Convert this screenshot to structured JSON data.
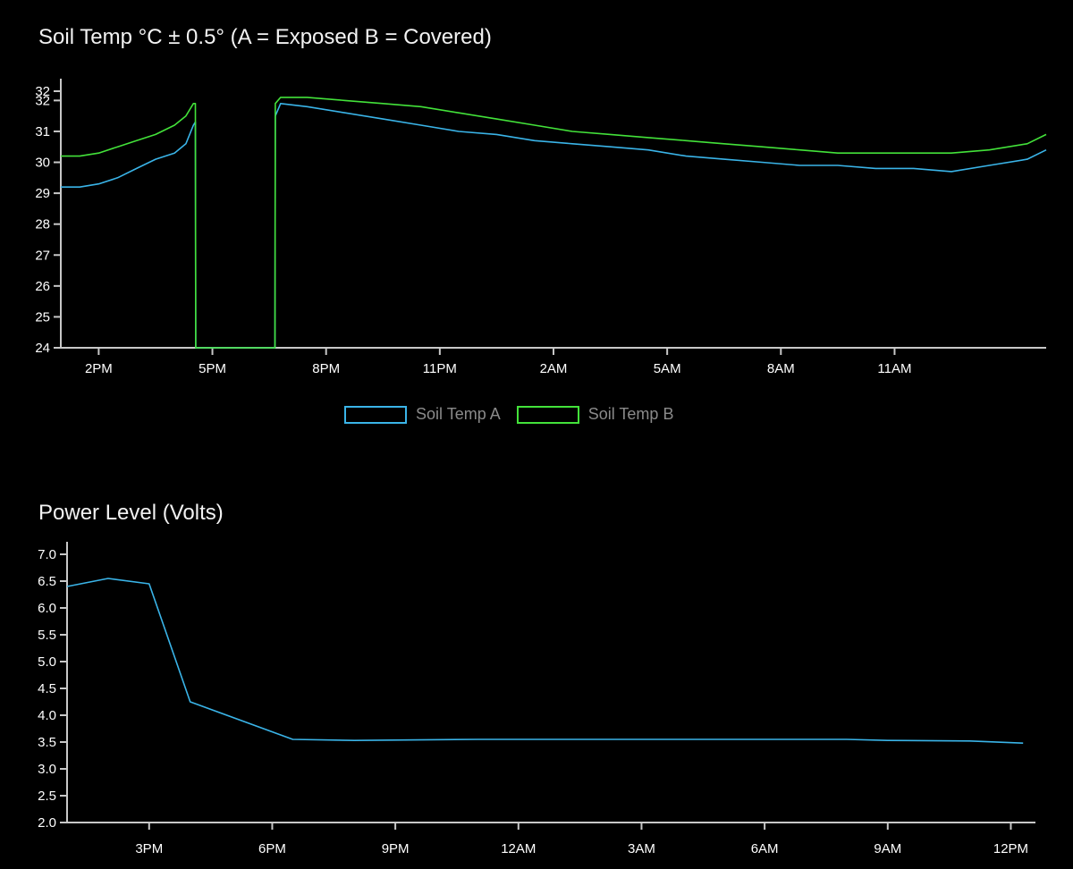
{
  "chart_data": [
    {
      "type": "line",
      "title": "Soil Temp °C ± 0.5° (A = Exposed B = Covered)",
      "xlabel": "",
      "ylabel": "",
      "ylim": [
        24,
        32.3
      ],
      "y_ticks": [
        "32",
        "32",
        "31",
        "30",
        "29",
        "28",
        "27",
        "26",
        "25",
        "24"
      ],
      "x_ticks": [
        "2PM",
        "5PM",
        "8PM",
        "11PM",
        "2AM",
        "5AM",
        "8AM",
        "11AM"
      ],
      "x_unit": "hours from 1PM",
      "xlim": [
        0,
        26
      ],
      "grid": false,
      "legend_position": "bottom-center",
      "series": [
        {
          "name": "Soil Temp A",
          "color": "#3ab4e8",
          "x": [
            0,
            0.5,
            1,
            1.5,
            2,
            2.5,
            3,
            3.3,
            3.5,
            3.55,
            3.56,
            5.65,
            5.66,
            5.8,
            6.5,
            7.5,
            8.5,
            9.5,
            10.5,
            11.5,
            12.5,
            13.5,
            14.5,
            15.5,
            16.5,
            17.5,
            18.5,
            19.5,
            20.5,
            21.5,
            22.5,
            23.5,
            24.5,
            25.5,
            26
          ],
          "y": [
            29.2,
            29.2,
            29.3,
            29.5,
            29.8,
            30.1,
            30.3,
            30.6,
            31.2,
            31.3,
            24,
            24,
            31.5,
            31.9,
            31.8,
            31.6,
            31.4,
            31.2,
            31.0,
            30.9,
            30.7,
            30.6,
            30.5,
            30.4,
            30.2,
            30.1,
            30.0,
            29.9,
            29.9,
            29.8,
            29.8,
            29.7,
            29.9,
            30.1,
            30.4
          ]
        },
        {
          "name": "Soil Temp B",
          "color": "#43e23a",
          "x": [
            0,
            0.5,
            1,
            1.5,
            2,
            2.5,
            3,
            3.3,
            3.5,
            3.55,
            3.56,
            5.65,
            5.66,
            5.8,
            6.5,
            7.5,
            8.5,
            9.5,
            10.5,
            11.5,
            12.5,
            13.5,
            14.5,
            15.5,
            16.5,
            17.5,
            18.5,
            19.5,
            20.5,
            21.5,
            22.5,
            23.5,
            24.5,
            25.5,
            26
          ],
          "y": [
            30.2,
            30.2,
            30.3,
            30.5,
            30.7,
            30.9,
            31.2,
            31.5,
            31.9,
            31.9,
            24,
            24,
            31.9,
            32.1,
            32.1,
            32.0,
            31.9,
            31.8,
            31.6,
            31.4,
            31.2,
            31.0,
            30.9,
            30.8,
            30.7,
            30.6,
            30.5,
            30.4,
            30.3,
            30.3,
            30.3,
            30.3,
            30.4,
            30.6,
            30.9
          ]
        }
      ]
    },
    {
      "type": "line",
      "title": "Power Level (Volts)",
      "xlabel": "",
      "ylabel": "",
      "ylim": [
        2.0,
        7.0
      ],
      "y_ticks": [
        "7.0",
        "6.5",
        "6.0",
        "5.5",
        "5.0",
        "4.5",
        "4.0",
        "3.5",
        "3.0",
        "2.5",
        "2.0"
      ],
      "x_ticks": [
        "3PM",
        "6PM",
        "9PM",
        "12AM",
        "3AM",
        "6AM",
        "9AM",
        "12PM"
      ],
      "x_unit": "hours from 1PM",
      "xlim": [
        0,
        23.6
      ],
      "grid": false,
      "series": [
        {
          "name": "",
          "color": "#3ab4e8",
          "x": [
            0,
            1,
            2,
            3,
            5.5,
            7,
            10,
            13,
            16,
            19,
            20,
            22,
            23.3
          ],
          "y": [
            6.4,
            6.55,
            6.45,
            4.25,
            3.55,
            3.53,
            3.55,
            3.55,
            3.55,
            3.55,
            3.53,
            3.52,
            3.48
          ]
        }
      ]
    }
  ]
}
